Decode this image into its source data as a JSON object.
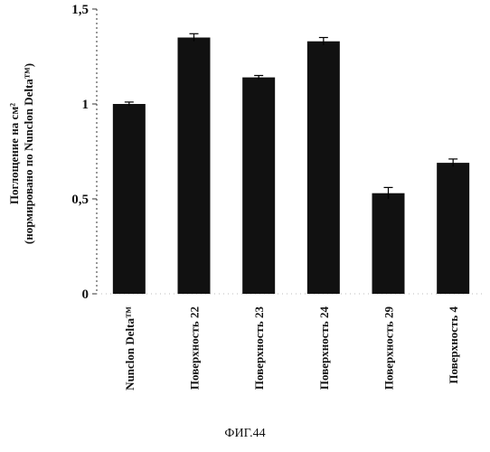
{
  "figure_caption": "ФИГ.44",
  "chart_data": {
    "type": "bar",
    "title": "",
    "ylabel_line1": "Поглощение на см²",
    "ylabel_line2": "(нормировано по Nunclon Delta™)",
    "xlabel": "",
    "categories": [
      "Nunclon Delta™",
      "Поверхность 22",
      "Поверхность 23",
      "Поверхность 24",
      "Поверхность 29",
      "Поверхность 4"
    ],
    "values": [
      1.0,
      1.35,
      1.14,
      1.33,
      0.53,
      0.69
    ],
    "errors": [
      0.01,
      0.02,
      0.01,
      0.02,
      0.03,
      0.02
    ],
    "ylim": [
      0,
      1.5
    ],
    "yticks": [
      0,
      0.5,
      1,
      1.5
    ],
    "ytick_labels": [
      "0",
      "0,5",
      "1",
      "1,5"
    ],
    "grid": false,
    "bar_color": "#111111"
  }
}
